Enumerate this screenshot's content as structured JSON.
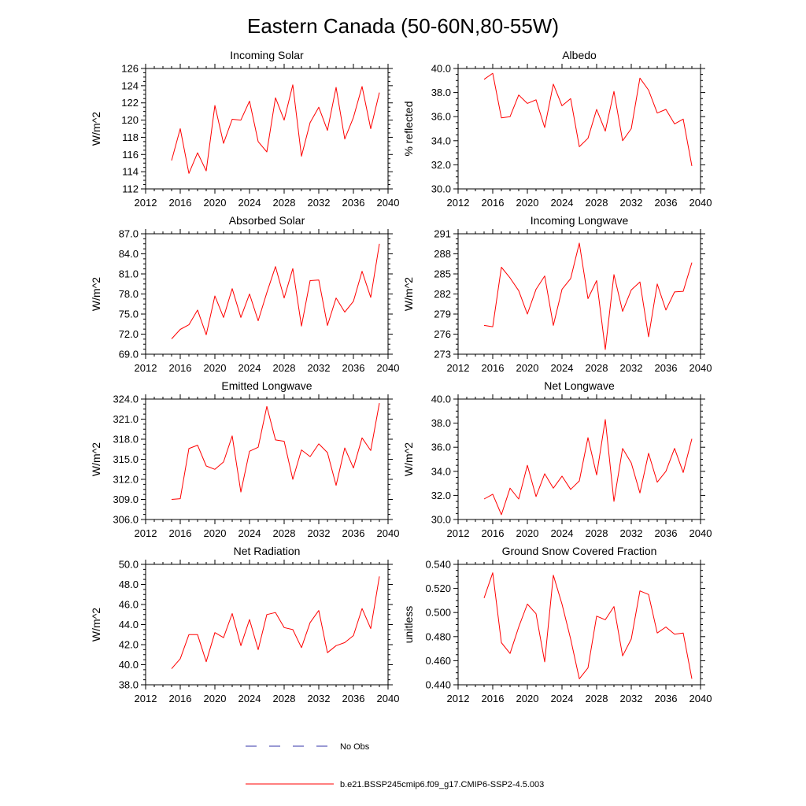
{
  "figure": {
    "title": "Eastern Canada (50-60N,80-55W)"
  },
  "legend": {
    "placement": "bottom-center",
    "entries": [
      {
        "label": "No Obs",
        "color": "#3333aa",
        "style": "dashed"
      },
      {
        "label": "b.e21.BSSP245cmip6.f09_g17.CMIP6-SSP2-4.5.003",
        "color": "#ff0000",
        "style": "solid"
      }
    ]
  },
  "chart_data": [
    {
      "type": "line",
      "title": "Incoming Solar",
      "ylabel": "W/m^2",
      "xlim": [
        2012,
        2040
      ],
      "xticks": [
        2012,
        2016,
        2020,
        2024,
        2028,
        2032,
        2036,
        2040
      ],
      "ylim": [
        112,
        126
      ],
      "yticks": [
        "112",
        "114",
        "116",
        "118",
        "120",
        "122",
        "124",
        "126"
      ],
      "grid": false,
      "series": [
        {
          "color": "#ff0000",
          "x": [
            2015,
            2016,
            2017,
            2018,
            2019,
            2020,
            2021,
            2022,
            2023,
            2024,
            2025,
            2026,
            2027,
            2028,
            2029,
            2030,
            2031,
            2032,
            2033,
            2034,
            2035,
            2036,
            2037,
            2038,
            2039
          ],
          "values": [
            115.3,
            119.0,
            113.8,
            116.2,
            114.1,
            121.7,
            117.3,
            120.1,
            120.0,
            122.2,
            117.5,
            116.3,
            122.6,
            120.0,
            124.1,
            115.8,
            119.7,
            121.5,
            118.8,
            123.8,
            117.8,
            120.3,
            123.9,
            119.0,
            123.2
          ]
        }
      ]
    },
    {
      "type": "line",
      "title": "Albedo",
      "ylabel": "% reflected",
      "xlim": [
        2012,
        2040
      ],
      "xticks": [
        2012,
        2016,
        2020,
        2024,
        2028,
        2032,
        2036,
        2040
      ],
      "ylim": [
        30,
        40
      ],
      "yticks": [
        "30.0",
        "32.0",
        "34.0",
        "36.0",
        "38.0",
        "40.0"
      ],
      "grid": false,
      "series": [
        {
          "color": "#ff0000",
          "x": [
            2015,
            2016,
            2017,
            2018,
            2019,
            2020,
            2021,
            2022,
            2023,
            2024,
            2025,
            2026,
            2027,
            2028,
            2029,
            2030,
            2031,
            2032,
            2033,
            2034,
            2035,
            2036,
            2037,
            2038,
            2039
          ],
          "values": [
            39.1,
            39.6,
            35.9,
            36.0,
            37.8,
            37.1,
            37.4,
            35.1,
            38.7,
            36.9,
            37.5,
            33.5,
            34.2,
            36.6,
            34.8,
            38.1,
            34.0,
            35.0,
            39.2,
            38.2,
            36.3,
            36.6,
            35.4,
            35.8,
            31.9
          ]
        }
      ]
    },
    {
      "type": "line",
      "title": "Absorbed Solar",
      "ylabel": "W/m^2",
      "xlim": [
        2012,
        2040
      ],
      "xticks": [
        2012,
        2016,
        2020,
        2024,
        2028,
        2032,
        2036,
        2040
      ],
      "ylim": [
        69,
        87
      ],
      "yticks": [
        "69.0",
        "72.0",
        "75.0",
        "78.0",
        "81.0",
        "84.0",
        "87.0"
      ],
      "grid": false,
      "series": [
        {
          "color": "#ff0000",
          "x": [
            2015,
            2016,
            2017,
            2018,
            2019,
            2020,
            2021,
            2022,
            2023,
            2024,
            2025,
            2026,
            2027,
            2028,
            2029,
            2030,
            2031,
            2032,
            2033,
            2034,
            2035,
            2036,
            2037,
            2038,
            2039
          ],
          "values": [
            71.3,
            72.7,
            73.4,
            75.6,
            71.9,
            77.7,
            74.5,
            78.8,
            74.5,
            78.0,
            74.0,
            78.2,
            82.1,
            77.4,
            81.8,
            73.2,
            80.0,
            80.1,
            73.3,
            77.4,
            75.3,
            76.9,
            81.4,
            77.5,
            85.5
          ]
        }
      ]
    },
    {
      "type": "line",
      "title": "Incoming Longwave",
      "ylabel": "W/m^2",
      "xlim": [
        2012,
        2040
      ],
      "xticks": [
        2012,
        2016,
        2020,
        2024,
        2028,
        2032,
        2036,
        2040
      ],
      "ylim": [
        273,
        291
      ],
      "yticks": [
        "273",
        "276",
        "279",
        "282",
        "285",
        "288",
        "291"
      ],
      "grid": false,
      "series": [
        {
          "color": "#ff0000",
          "x": [
            2015,
            2016,
            2017,
            2018,
            2019,
            2020,
            2021,
            2022,
            2023,
            2024,
            2025,
            2026,
            2027,
            2028,
            2029,
            2030,
            2031,
            2032,
            2033,
            2034,
            2035,
            2036,
            2037,
            2038,
            2039
          ],
          "values": [
            277.3,
            277.1,
            286.0,
            284.4,
            282.5,
            279.0,
            282.7,
            284.7,
            277.3,
            282.7,
            284.3,
            289.6,
            281.3,
            284.0,
            273.7,
            284.9,
            279.4,
            282.6,
            283.8,
            275.6,
            283.5,
            279.6,
            282.3,
            282.4,
            286.7
          ]
        }
      ]
    },
    {
      "type": "line",
      "title": "Emitted Longwave",
      "ylabel": "W/m^2",
      "xlim": [
        2012,
        2040
      ],
      "xticks": [
        2012,
        2016,
        2020,
        2024,
        2028,
        2032,
        2036,
        2040
      ],
      "ylim": [
        306,
        324
      ],
      "yticks": [
        "306.0",
        "309.0",
        "312.0",
        "315.0",
        "318.0",
        "321.0",
        "324.0"
      ],
      "grid": false,
      "series": [
        {
          "color": "#ff0000",
          "x": [
            2015,
            2016,
            2017,
            2018,
            2019,
            2020,
            2021,
            2022,
            2023,
            2024,
            2025,
            2026,
            2027,
            2028,
            2029,
            2030,
            2031,
            2032,
            2033,
            2034,
            2035,
            2036,
            2037,
            2038,
            2039
          ],
          "values": [
            309.0,
            309.1,
            316.6,
            317.1,
            314.0,
            313.5,
            314.6,
            318.5,
            310.1,
            316.2,
            316.8,
            322.9,
            317.9,
            317.7,
            312.0,
            316.4,
            315.4,
            317.3,
            316.0,
            311.1,
            316.7,
            313.7,
            318.2,
            316.3,
            323.4
          ]
        }
      ]
    },
    {
      "type": "line",
      "title": "Net Longwave",
      "ylabel": "W/m^2",
      "xlim": [
        2012,
        2040
      ],
      "xticks": [
        2012,
        2016,
        2020,
        2024,
        2028,
        2032,
        2036,
        2040
      ],
      "ylim": [
        30,
        40
      ],
      "yticks": [
        "30.0",
        "32.0",
        "34.0",
        "36.0",
        "38.0",
        "40.0"
      ],
      "grid": false,
      "series": [
        {
          "color": "#ff0000",
          "x": [
            2015,
            2016,
            2017,
            2018,
            2019,
            2020,
            2021,
            2022,
            2023,
            2024,
            2025,
            2026,
            2027,
            2028,
            2029,
            2030,
            2031,
            2032,
            2033,
            2034,
            2035,
            2036,
            2037,
            2038,
            2039
          ],
          "values": [
            31.7,
            32.1,
            30.4,
            32.6,
            31.7,
            34.5,
            31.9,
            33.8,
            32.6,
            33.6,
            32.5,
            33.2,
            36.8,
            33.7,
            38.3,
            31.5,
            35.9,
            34.7,
            32.2,
            35.5,
            33.1,
            34.0,
            35.9,
            33.9,
            36.7
          ]
        }
      ]
    },
    {
      "type": "line",
      "title": "Net Radiation",
      "ylabel": "W/m^2",
      "xlim": [
        2012,
        2040
      ],
      "xticks": [
        2012,
        2016,
        2020,
        2024,
        2028,
        2032,
        2036,
        2040
      ],
      "ylim": [
        38,
        50
      ],
      "yticks": [
        "38.0",
        "40.0",
        "42.0",
        "44.0",
        "46.0",
        "48.0",
        "50.0"
      ],
      "grid": false,
      "series": [
        {
          "color": "#ff0000",
          "x": [
            2015,
            2016,
            2017,
            2018,
            2019,
            2020,
            2021,
            2022,
            2023,
            2024,
            2025,
            2026,
            2027,
            2028,
            2029,
            2030,
            2031,
            2032,
            2033,
            2034,
            2035,
            2036,
            2037,
            2038,
            2039
          ],
          "values": [
            39.6,
            40.6,
            43.0,
            43.0,
            40.3,
            43.2,
            42.7,
            45.1,
            41.9,
            44.5,
            41.5,
            45.0,
            45.2,
            43.7,
            43.5,
            41.7,
            44.2,
            45.4,
            41.2,
            41.9,
            42.2,
            42.9,
            45.6,
            43.6,
            48.8
          ]
        }
      ]
    },
    {
      "type": "line",
      "title": "Ground Snow Covered Fraction",
      "ylabel": "unitless",
      "xlim": [
        2012,
        2040
      ],
      "xticks": [
        2012,
        2016,
        2020,
        2024,
        2028,
        2032,
        2036,
        2040
      ],
      "ylim": [
        0.44,
        0.54
      ],
      "yticks": [
        "0.440",
        "0.460",
        "0.480",
        "0.500",
        "0.520",
        "0.540"
      ],
      "grid": false,
      "series": [
        {
          "color": "#ff0000",
          "x": [
            2015,
            2016,
            2017,
            2018,
            2019,
            2020,
            2021,
            2022,
            2023,
            2024,
            2025,
            2026,
            2027,
            2028,
            2029,
            2030,
            2031,
            2032,
            2033,
            2034,
            2035,
            2036,
            2037,
            2038,
            2039
          ],
          "values": [
            0.512,
            0.533,
            0.475,
            0.466,
            0.488,
            0.507,
            0.499,
            0.459,
            0.531,
            0.507,
            0.478,
            0.445,
            0.454,
            0.497,
            0.494,
            0.505,
            0.464,
            0.478,
            0.518,
            0.515,
            0.483,
            0.488,
            0.482,
            0.483,
            0.445
          ]
        }
      ]
    }
  ]
}
